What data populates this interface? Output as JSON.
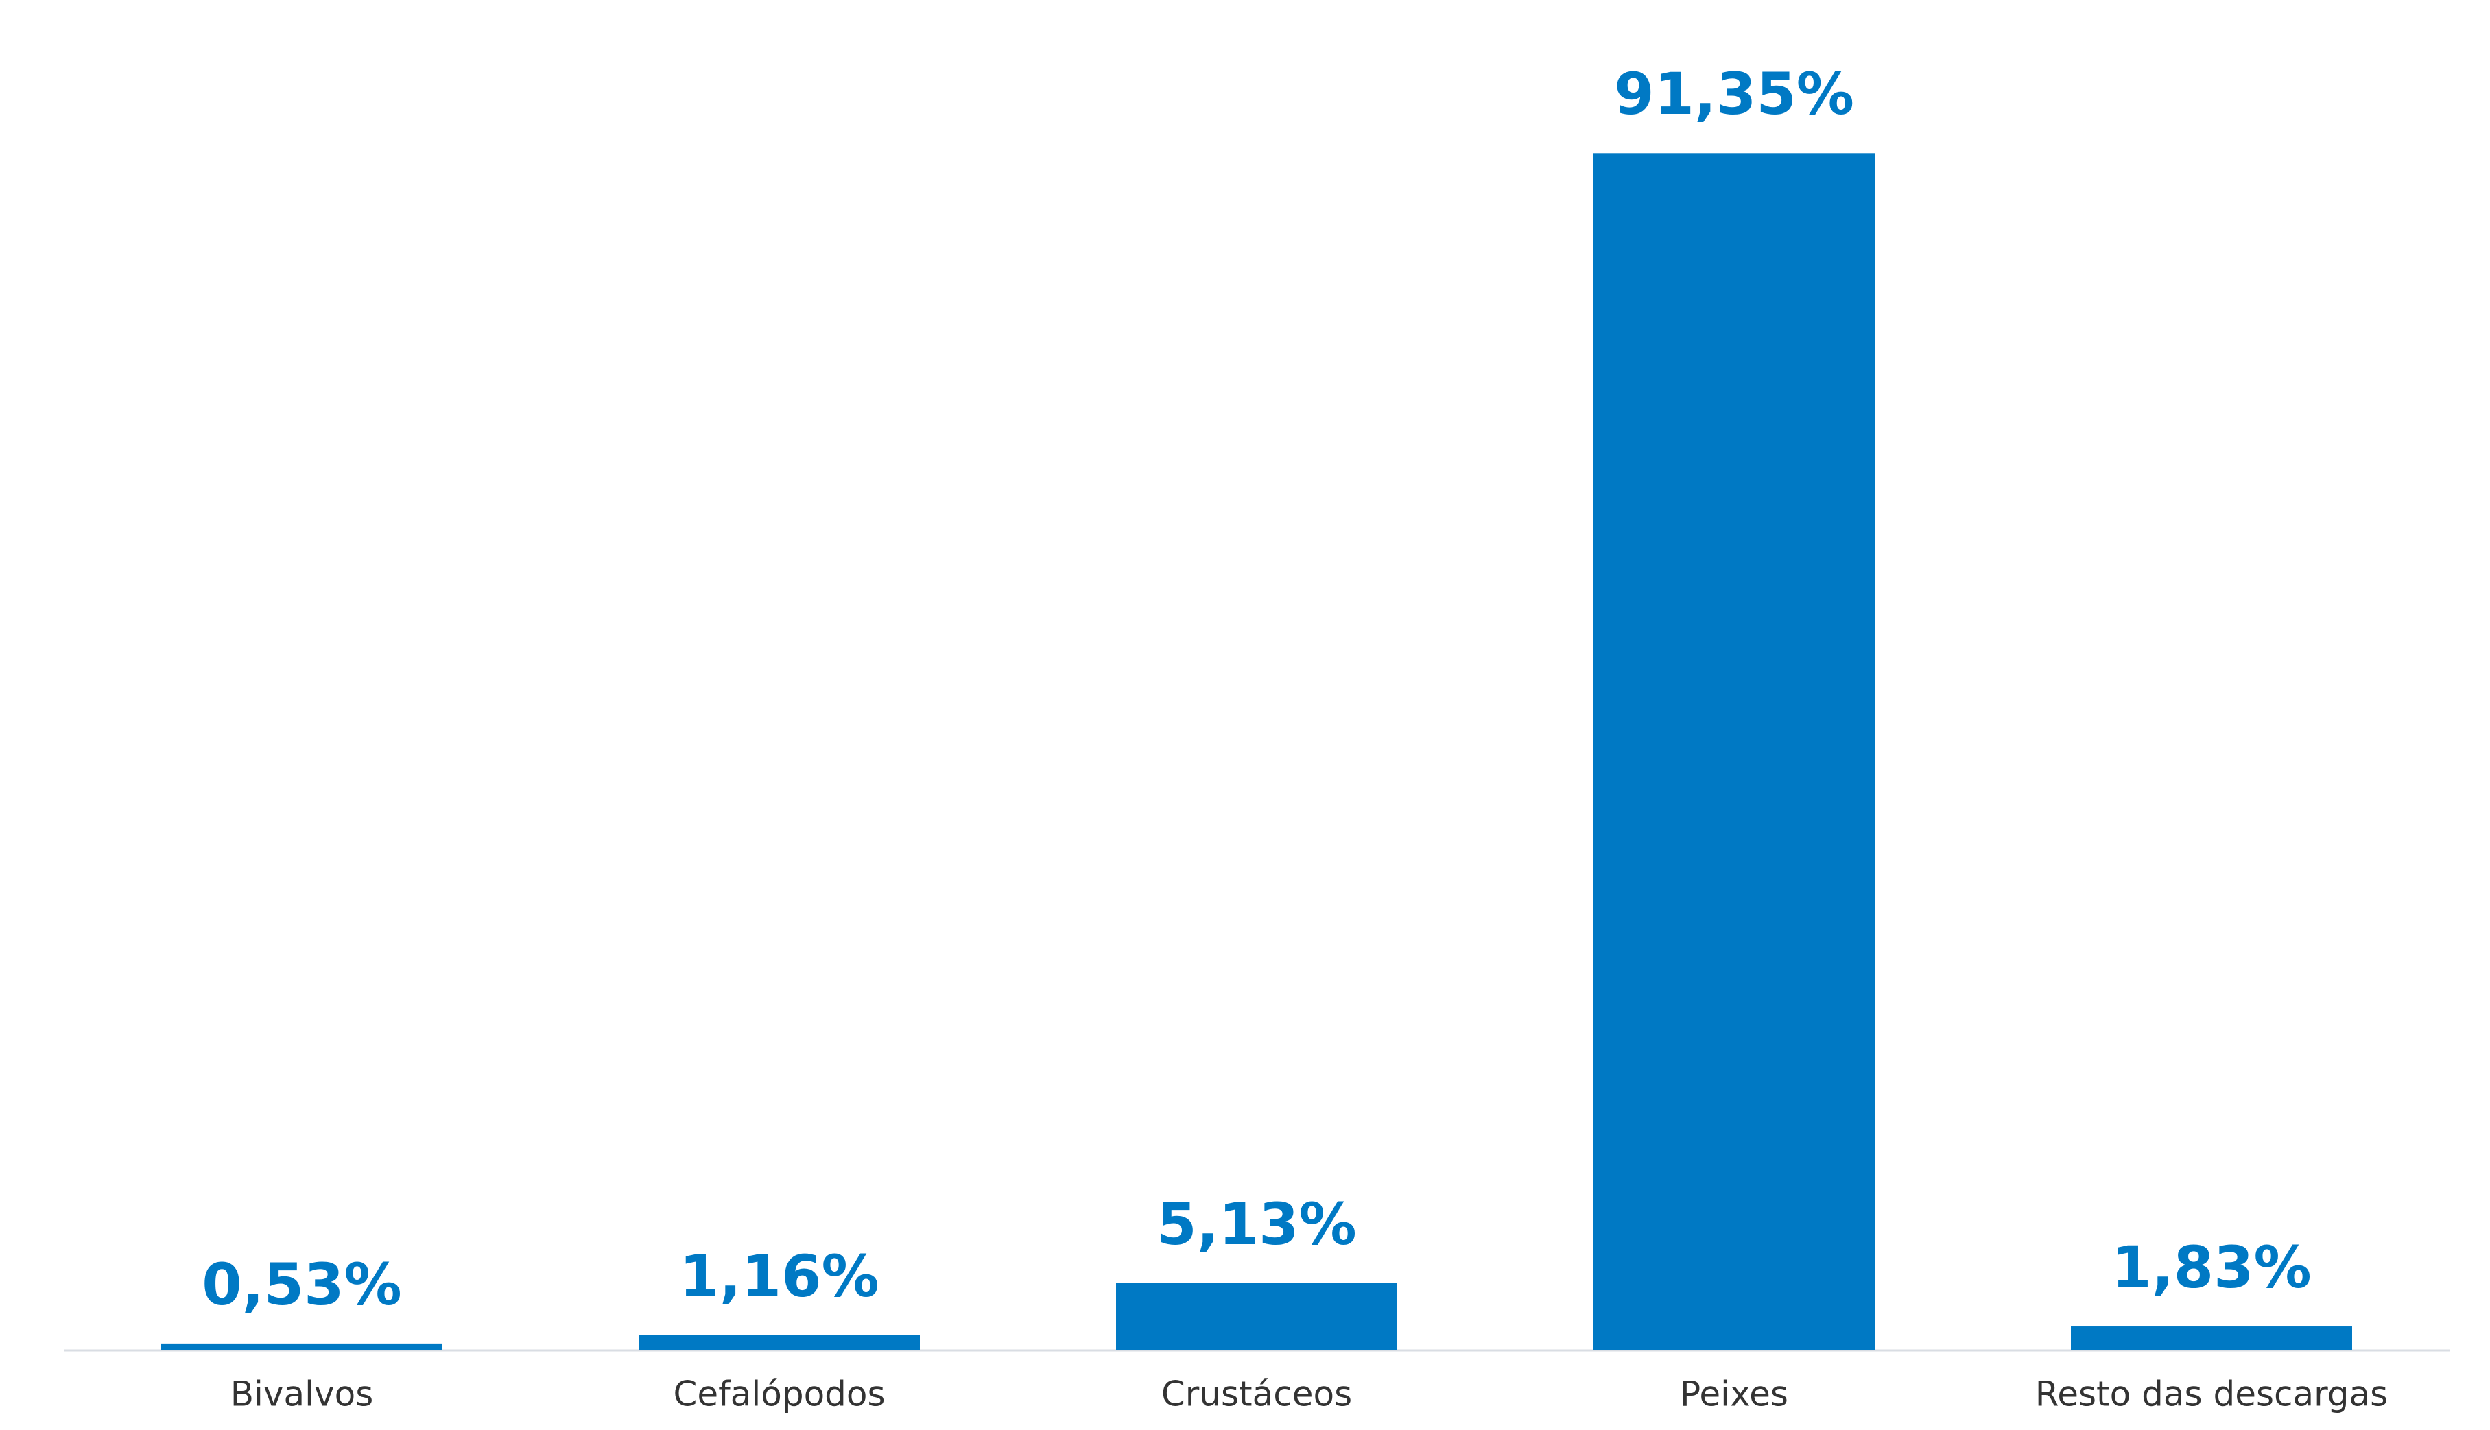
{
  "chart_data": {
    "type": "bar",
    "categories": [
      "Bivalvos",
      "Cefalópodos",
      "Crustáceos",
      "Peixes",
      "Resto das descargas"
    ],
    "values": [
      0.53,
      1.16,
      5.13,
      91.35,
      1.83
    ],
    "value_labels": [
      "0,53%",
      "1,16%",
      "5,13%",
      "91,35%",
      "1,83%"
    ],
    "color": "#0079c4"
  }
}
